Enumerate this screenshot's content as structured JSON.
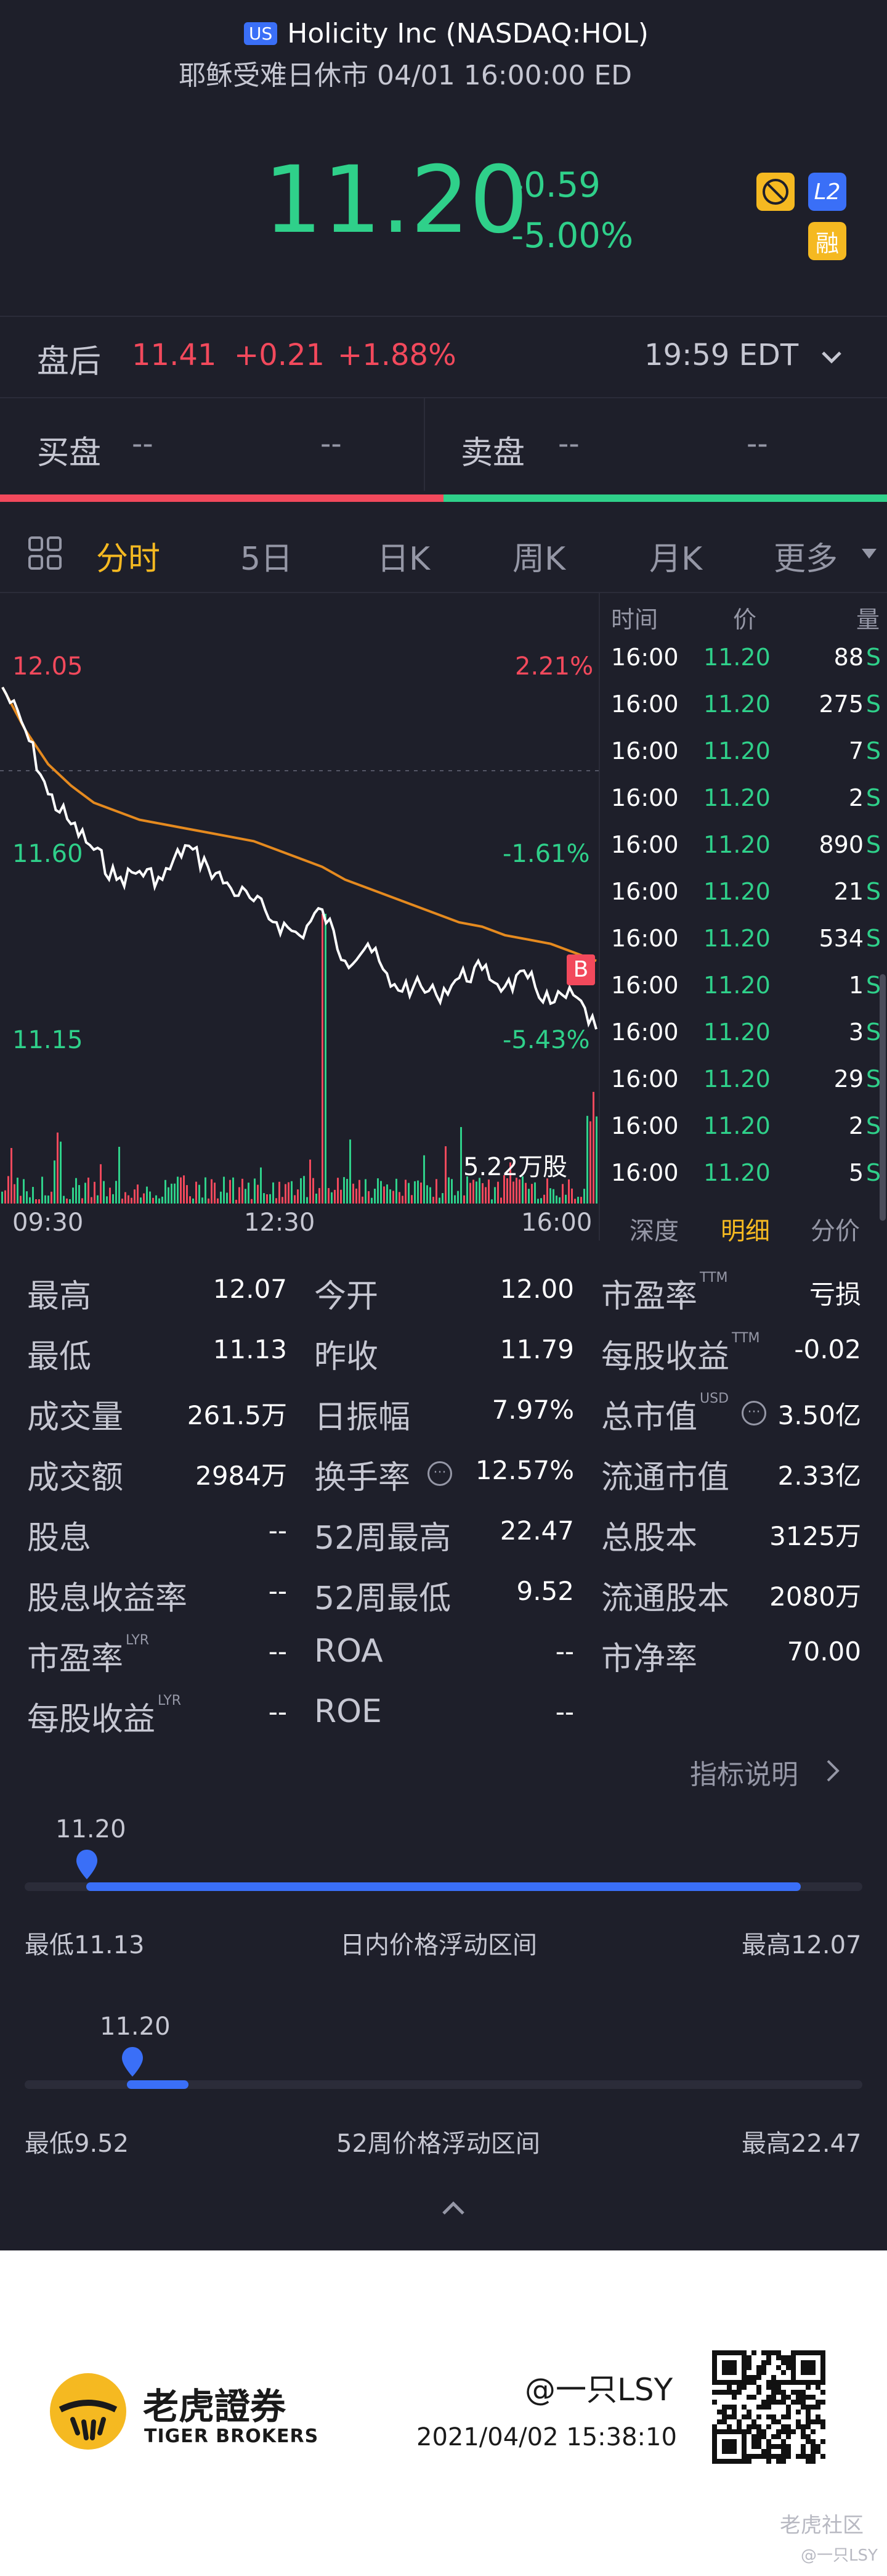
{
  "header": {
    "market_badge": "US",
    "title": "Holicity Inc (NASDAQ:HOL)",
    "status_line": "耶稣受难日休市 04/01 16:00:00 ED"
  },
  "quote": {
    "price": "11.20",
    "change": "-0.59",
    "change_pct": "-5.00%",
    "badge_l2": "L2",
    "badge_margin": "融",
    "icon_no_short": "no-short-icon"
  },
  "after_hours": {
    "label": "盘后",
    "price": "11.41",
    "change": "+0.21",
    "change_pct": "+1.88%",
    "time": "19:59 EDT"
  },
  "order_book": {
    "bid_label": "买盘",
    "bid_price": "--",
    "bid_size": "--",
    "ask_label": "卖盘",
    "ask_price": "--",
    "ask_size": "--"
  },
  "tabs": {
    "items": [
      "分时",
      "5日",
      "日K",
      "周K",
      "月K",
      "更多"
    ],
    "active": "分时"
  },
  "chart": {
    "high_label": "12.05",
    "high_pct": "2.21%",
    "mid_label": "11.60",
    "mid_pct": "-1.61%",
    "low_label": "11.15",
    "low_pct": "-5.43%",
    "volume_label": "5.22万股",
    "x_ticks": [
      "09:30",
      "12:30",
      "16:00"
    ],
    "marker": "B"
  },
  "chart_data": {
    "type": "line",
    "ylim": [
      11.15,
      12.05
    ],
    "x": [
      "09:30",
      "09:45",
      "10:00",
      "10:15",
      "10:30",
      "10:45",
      "11:00",
      "11:15",
      "11:30",
      "11:45",
      "12:00",
      "12:15",
      "12:30",
      "12:45",
      "13:00",
      "13:15",
      "13:30",
      "13:45",
      "14:00",
      "14:15",
      "14:30",
      "14:45",
      "15:00",
      "15:15",
      "15:30",
      "15:45",
      "16:00"
    ],
    "series": [
      {
        "values": [
          12.0,
          11.9,
          11.75,
          11.68,
          11.62,
          11.55,
          11.57,
          11.55,
          11.63,
          11.58,
          11.53,
          11.5,
          11.45,
          11.42,
          11.48,
          11.36,
          11.4,
          11.3,
          11.3,
          11.28,
          11.32,
          11.34,
          11.3,
          11.32,
          11.26,
          11.28,
          11.2
        ]
      },
      {
        "values": [
          12.0,
          11.9,
          11.82,
          11.77,
          11.73,
          11.71,
          11.69,
          11.68,
          11.67,
          11.66,
          11.65,
          11.64,
          11.62,
          11.6,
          11.58,
          11.55,
          11.53,
          11.51,
          11.49,
          11.47,
          11.45,
          11.44,
          11.42,
          11.41,
          11.4,
          11.38,
          11.36
        ]
      }
    ]
  },
  "trades": {
    "headers": [
      "时间",
      "价",
      "量"
    ],
    "rows": [
      {
        "time": "16:00",
        "price": "11.20",
        "size": "88"
      },
      {
        "time": "16:00",
        "price": "11.20",
        "size": "275"
      },
      {
        "time": "16:00",
        "price": "11.20",
        "size": "7"
      },
      {
        "time": "16:00",
        "price": "11.20",
        "size": "2"
      },
      {
        "time": "16:00",
        "price": "11.20",
        "size": "890"
      },
      {
        "time": "16:00",
        "price": "11.20",
        "size": "21"
      },
      {
        "time": "16:00",
        "price": "11.20",
        "size": "534"
      },
      {
        "time": "16:00",
        "price": "11.20",
        "size": "1"
      },
      {
        "time": "16:00",
        "price": "11.20",
        "size": "3"
      },
      {
        "time": "16:00",
        "price": "11.20",
        "size": "29"
      },
      {
        "time": "16:00",
        "price": "11.20",
        "size": "2"
      },
      {
        "time": "16:00",
        "price": "11.20",
        "size": "5"
      }
    ],
    "side_flag": "S",
    "subtabs": [
      "深度",
      "明细",
      "分价"
    ],
    "active_subtab": "明细"
  },
  "stats": {
    "col1": [
      {
        "label": "最高",
        "value": "12.07"
      },
      {
        "label": "最低",
        "value": "11.13"
      },
      {
        "label": "成交量",
        "value": "261.5万"
      },
      {
        "label": "成交额",
        "value": "2984万"
      },
      {
        "label": "股息",
        "value": "--"
      },
      {
        "label": "股息收益率",
        "value": "--"
      },
      {
        "label": "市盈率",
        "sup": "LYR",
        "value": "--"
      },
      {
        "label": "每股收益",
        "sup": "LYR",
        "value": "--"
      }
    ],
    "col2": [
      {
        "label": "今开",
        "value": "12.00"
      },
      {
        "label": "昨收",
        "value": "11.79"
      },
      {
        "label": "日振幅",
        "value": "7.97%"
      },
      {
        "label": "换手率",
        "value": "12.57%"
      },
      {
        "label": "52周最高",
        "value": "22.47"
      },
      {
        "label": "52周最低",
        "value": "9.52"
      },
      {
        "label": "ROA",
        "value": "--"
      },
      {
        "label": "ROE",
        "value": "--"
      }
    ],
    "col3": [
      {
        "label": "市盈率",
        "sup": "TTM",
        "value": "亏损"
      },
      {
        "label": "每股收益",
        "sup": "TTM",
        "value": "-0.02"
      },
      {
        "label": "总市值",
        "sup": "USD",
        "value": "3.50亿"
      },
      {
        "label": "流通市值",
        "value": "2.33亿"
      },
      {
        "label": "总股本",
        "value": "3125万"
      },
      {
        "label": "流通股本",
        "value": "2080万"
      },
      {
        "label": "市净率",
        "value": "70.00"
      }
    ],
    "indicator_link": "指标说明"
  },
  "ranges": {
    "day": {
      "current": "11.20",
      "low_label": "最低11.13",
      "high_label": "最高12.07",
      "caption": "日内价格浮动区间",
      "position": 0.074
    },
    "week52": {
      "current": "11.20",
      "low_label": "最低9.52",
      "high_label": "最高22.47",
      "caption": "52周价格浮动区间",
      "position": 0.13
    }
  },
  "footer": {
    "brand_cn": "老虎證券",
    "brand_en": "TIGER BROKERS",
    "user": "@一只LSY",
    "timestamp": "2021/04/02 15:38:10",
    "community": "老虎社区",
    "watermark": "@一只LSY"
  },
  "colors": {
    "gain": "#2fd08a",
    "loss": "#f2495c",
    "accent": "#f5b921",
    "bar": "#3a6ff7",
    "vwap": "#e58a1f"
  }
}
